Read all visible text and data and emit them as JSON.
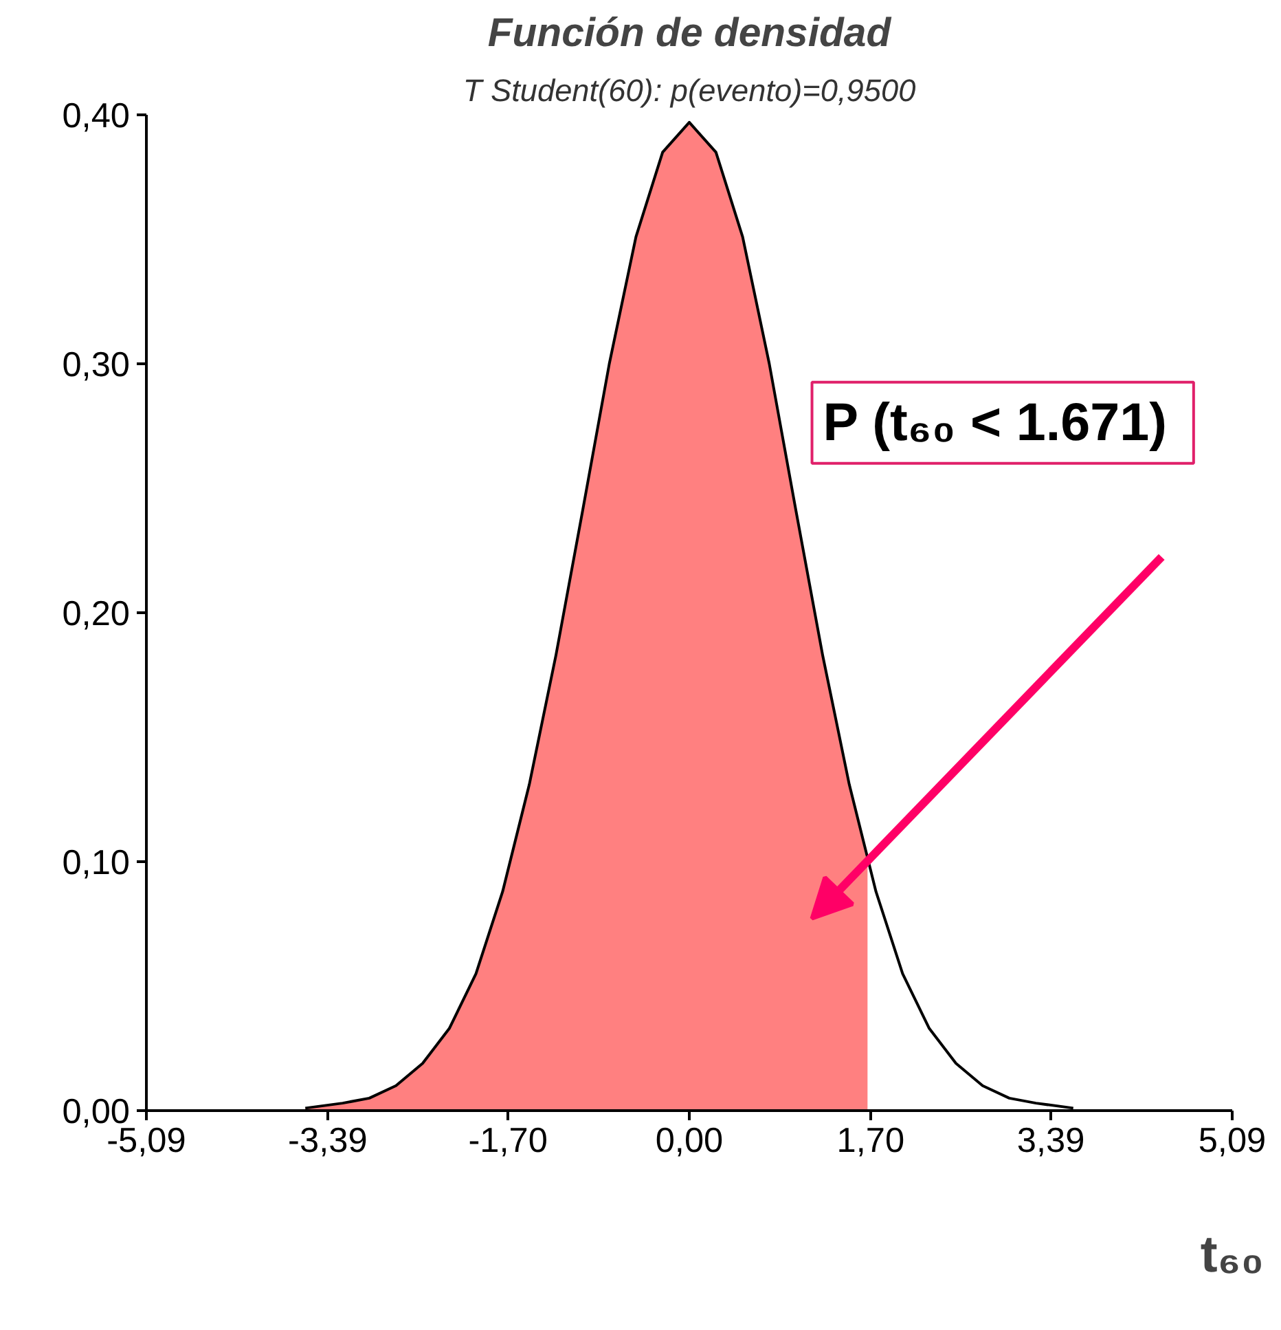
{
  "chart_data": {
    "type": "line",
    "title": "Función de densidad",
    "subtitle": "T Student(60): p(evento)=0,9500",
    "xlabel": "t₆₀",
    "xlim": [
      -5.09,
      5.09
    ],
    "ylim": [
      0,
      0.4
    ],
    "xticks": [
      {
        "value": -5.09,
        "label": "-5,09"
      },
      {
        "value": -3.39,
        "label": "-3,39"
      },
      {
        "value": -1.7,
        "label": "-1,70"
      },
      {
        "value": 0,
        "label": "0,00"
      },
      {
        "value": 1.7,
        "label": "1,70"
      },
      {
        "value": 3.39,
        "label": "3,39"
      },
      {
        "value": 5.09,
        "label": "5,09"
      }
    ],
    "yticks": [
      {
        "value": 0,
        "label": "0,00"
      },
      {
        "value": 0.1,
        "label": "0,10"
      },
      {
        "value": 0.2,
        "label": "0,20"
      },
      {
        "value": 0.3,
        "label": "0,30"
      },
      {
        "value": 0.4,
        "label": "0,40"
      }
    ],
    "series": [
      {
        "type": "area",
        "color": "#ff8080",
        "x": [
          -3.6,
          -3.25,
          -3.0,
          -2.75,
          -2.5,
          -2.25,
          -2.0,
          -1.75,
          -1.5,
          -1.25,
          -1.0,
          -0.75,
          -0.5,
          -0.25,
          0,
          0.25,
          0.5,
          0.75,
          1.0,
          1.25,
          1.5,
          1.671
        ],
        "values": [
          0.001,
          0.003,
          0.005,
          0.01,
          0.019,
          0.033,
          0.055,
          0.088,
          0.131,
          0.183,
          0.241,
          0.3,
          0.351,
          0.385,
          0.397,
          0.385,
          0.351,
          0.3,
          0.241,
          0.183,
          0.131,
          0.099
        ]
      },
      {
        "type": "line",
        "color": "#000000",
        "x": [
          -3.6,
          -3.25,
          -3.0,
          -2.75,
          -2.5,
          -2.25,
          -2.0,
          -1.75,
          -1.5,
          -1.25,
          -1.0,
          -0.75,
          -0.5,
          -0.25,
          0,
          0.25,
          0.5,
          0.75,
          1.0,
          1.25,
          1.5,
          1.75,
          2.0,
          2.25,
          2.5,
          2.75,
          3.0,
          3.25,
          3.6
        ],
        "values": [
          0.001,
          0.003,
          0.005,
          0.01,
          0.019,
          0.033,
          0.055,
          0.088,
          0.131,
          0.183,
          0.241,
          0.3,
          0.351,
          0.385,
          0.397,
          0.385,
          0.351,
          0.3,
          0.241,
          0.183,
          0.131,
          0.088,
          0.055,
          0.033,
          0.019,
          0.01,
          0.005,
          0.003,
          0.001
        ]
      }
    ],
    "annotations": [
      "P (t₆₀ <  1.671)"
    ]
  }
}
